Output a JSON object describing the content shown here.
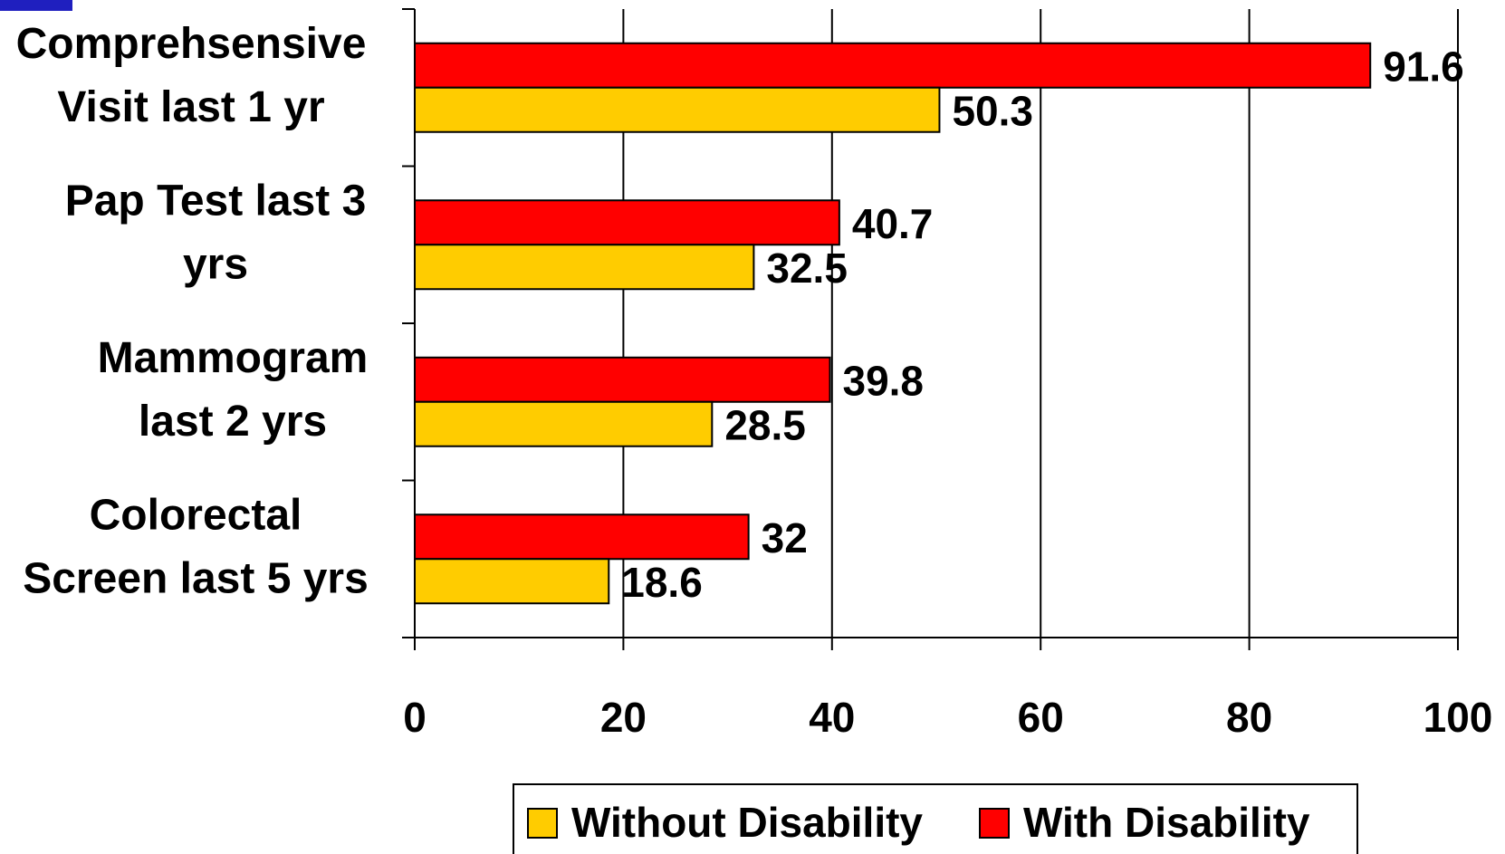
{
  "chart_data": {
    "type": "bar",
    "orientation": "horizontal",
    "categories": [
      [
        "Comprehsensive",
        "Visit last 1 yr"
      ],
      [
        "Pap Test last 3",
        "yrs"
      ],
      [
        "Mammogram",
        "last 2 yrs"
      ],
      [
        "Colorectal",
        "Screen last 5 yrs"
      ]
    ],
    "series": [
      {
        "name": "With Disability",
        "color": "#ff0000",
        "values": [
          91.6,
          40.7,
          39.8,
          32
        ],
        "labels": [
          "91.6",
          "40.7",
          "39.8",
          "32"
        ]
      },
      {
        "name": "Without Disability",
        "color": "#ffcc00",
        "values": [
          50.3,
          32.5,
          28.5,
          18.6
        ],
        "labels": [
          "50.3",
          "32.5",
          "28.5",
          "18.6"
        ]
      }
    ],
    "xlim": [
      0,
      100
    ],
    "xticks": [
      0,
      20,
      40,
      60,
      80,
      100
    ],
    "xtick_labels": [
      "0",
      "20",
      "40",
      "60",
      "80",
      "100"
    ],
    "grid": true,
    "legend": {
      "placement": "bottom",
      "entries": [
        {
          "name": "Without Disability",
          "color": "#ffcc00"
        },
        {
          "name": "With Disability",
          "color": "#ff0000"
        }
      ]
    },
    "title": "",
    "xlabel": "",
    "ylabel": ""
  }
}
